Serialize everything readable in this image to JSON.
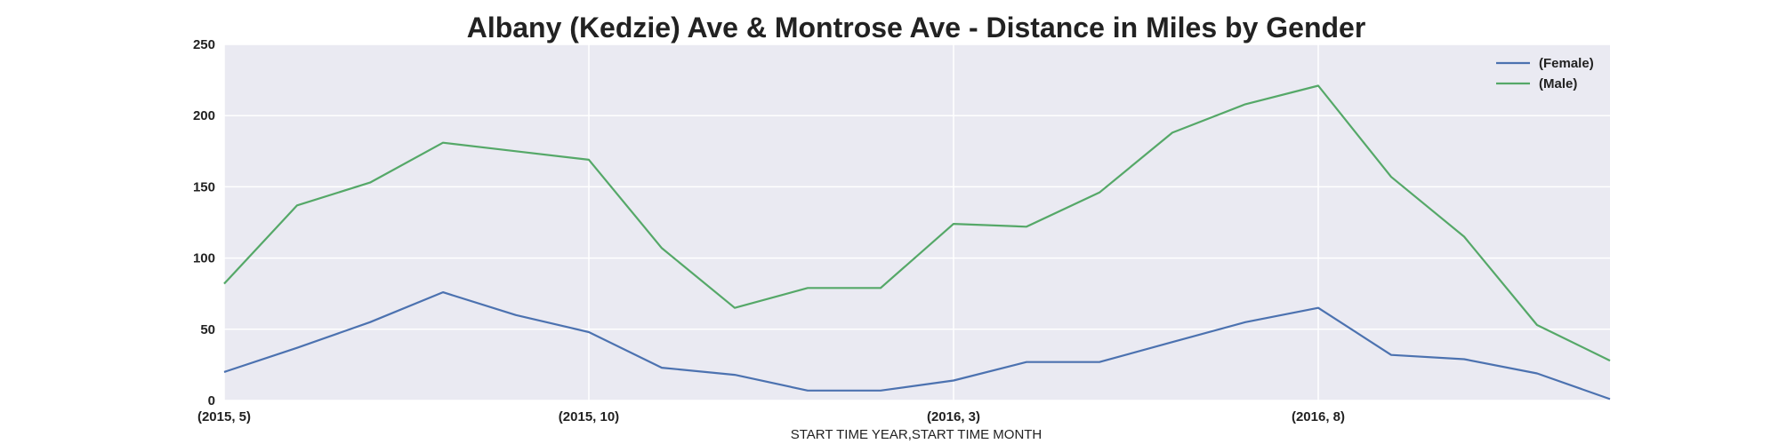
{
  "chart_data": {
    "type": "line",
    "title": "Albany (Kedzie) Ave & Montrose Ave - Distance in Miles by Gender",
    "xlabel": "START TIME YEAR,START TIME MONTH",
    "ylabel": "",
    "ylim": [
      0,
      250
    ],
    "yticks": [
      0,
      50,
      100,
      150,
      200,
      250
    ],
    "categories": [
      "(2015, 5)",
      "(2015, 6)",
      "(2015, 7)",
      "(2015, 8)",
      "(2015, 9)",
      "(2015, 10)",
      "(2015, 11)",
      "(2015, 12)",
      "(2016, 1)",
      "(2016, 2)",
      "(2016, 3)",
      "(2016, 4)",
      "(2016, 5)",
      "(2016, 6)",
      "(2016, 7)",
      "(2016, 8)",
      "(2016, 9)",
      "(2016, 10)",
      "(2016, 11)",
      "(2016, 12)"
    ],
    "xtick_labels": [
      "(2015, 5)",
      "(2015, 10)",
      "(2016, 3)",
      "(2016, 8)"
    ],
    "grid": true,
    "legend_placement": "top-right",
    "series": [
      {
        "name": "(Female)",
        "color": "#4c72b0",
        "values": [
          20,
          37,
          55,
          76,
          60,
          48,
          23,
          18,
          7,
          7,
          14,
          27,
          27,
          41,
          55,
          65,
          32,
          29,
          19,
          1
        ]
      },
      {
        "name": "(Male)",
        "color": "#55a868",
        "values": [
          82,
          137,
          153,
          181,
          175,
          169,
          107,
          65,
          79,
          79,
          124,
          122,
          146,
          188,
          208,
          221,
          157,
          115,
          53,
          28
        ]
      }
    ],
    "colors": {
      "plot_background": "#eaeaf2",
      "grid": "#ffffff",
      "text": "#222222"
    }
  }
}
